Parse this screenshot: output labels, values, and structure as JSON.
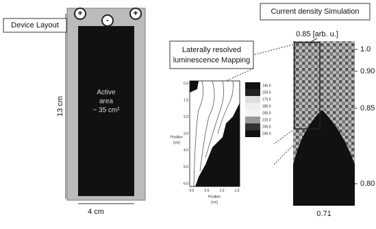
{
  "device_layout": {
    "title": "Device Layout",
    "terminals": [
      "+",
      "-",
      "+"
    ],
    "height_label": "13 cm",
    "width_label": "4 cm",
    "active_area": [
      "Active",
      "area",
      "~ 35 cm²"
    ]
  },
  "luminescence": {
    "title": [
      "Laterally resolved",
      "luminescence Mapping"
    ],
    "y_label": [
      "Position",
      "[cm]"
    ],
    "x_label": [
      "Position",
      "[cm]"
    ],
    "y_ticks": [
      "0.0",
      "1.0",
      "2.0",
      "3.0",
      "4.0",
      "5.0",
      "6.0"
    ],
    "x_ticks": [
      "0.0",
      "0.5",
      "1.0",
      "1.5"
    ],
    "legend": [
      "145.0",
      "150.0",
      "175.0",
      "185.0",
      "200.0",
      "215.0",
      "230.0",
      "245.0"
    ]
  },
  "simulation": {
    "title": "Current density Simulation",
    "top_label": "0.85 [arb. u.]",
    "scale_labels": [
      "1.0",
      "0.90",
      "0.85",
      "0.80"
    ],
    "bottom_label": "0.71"
  }
}
